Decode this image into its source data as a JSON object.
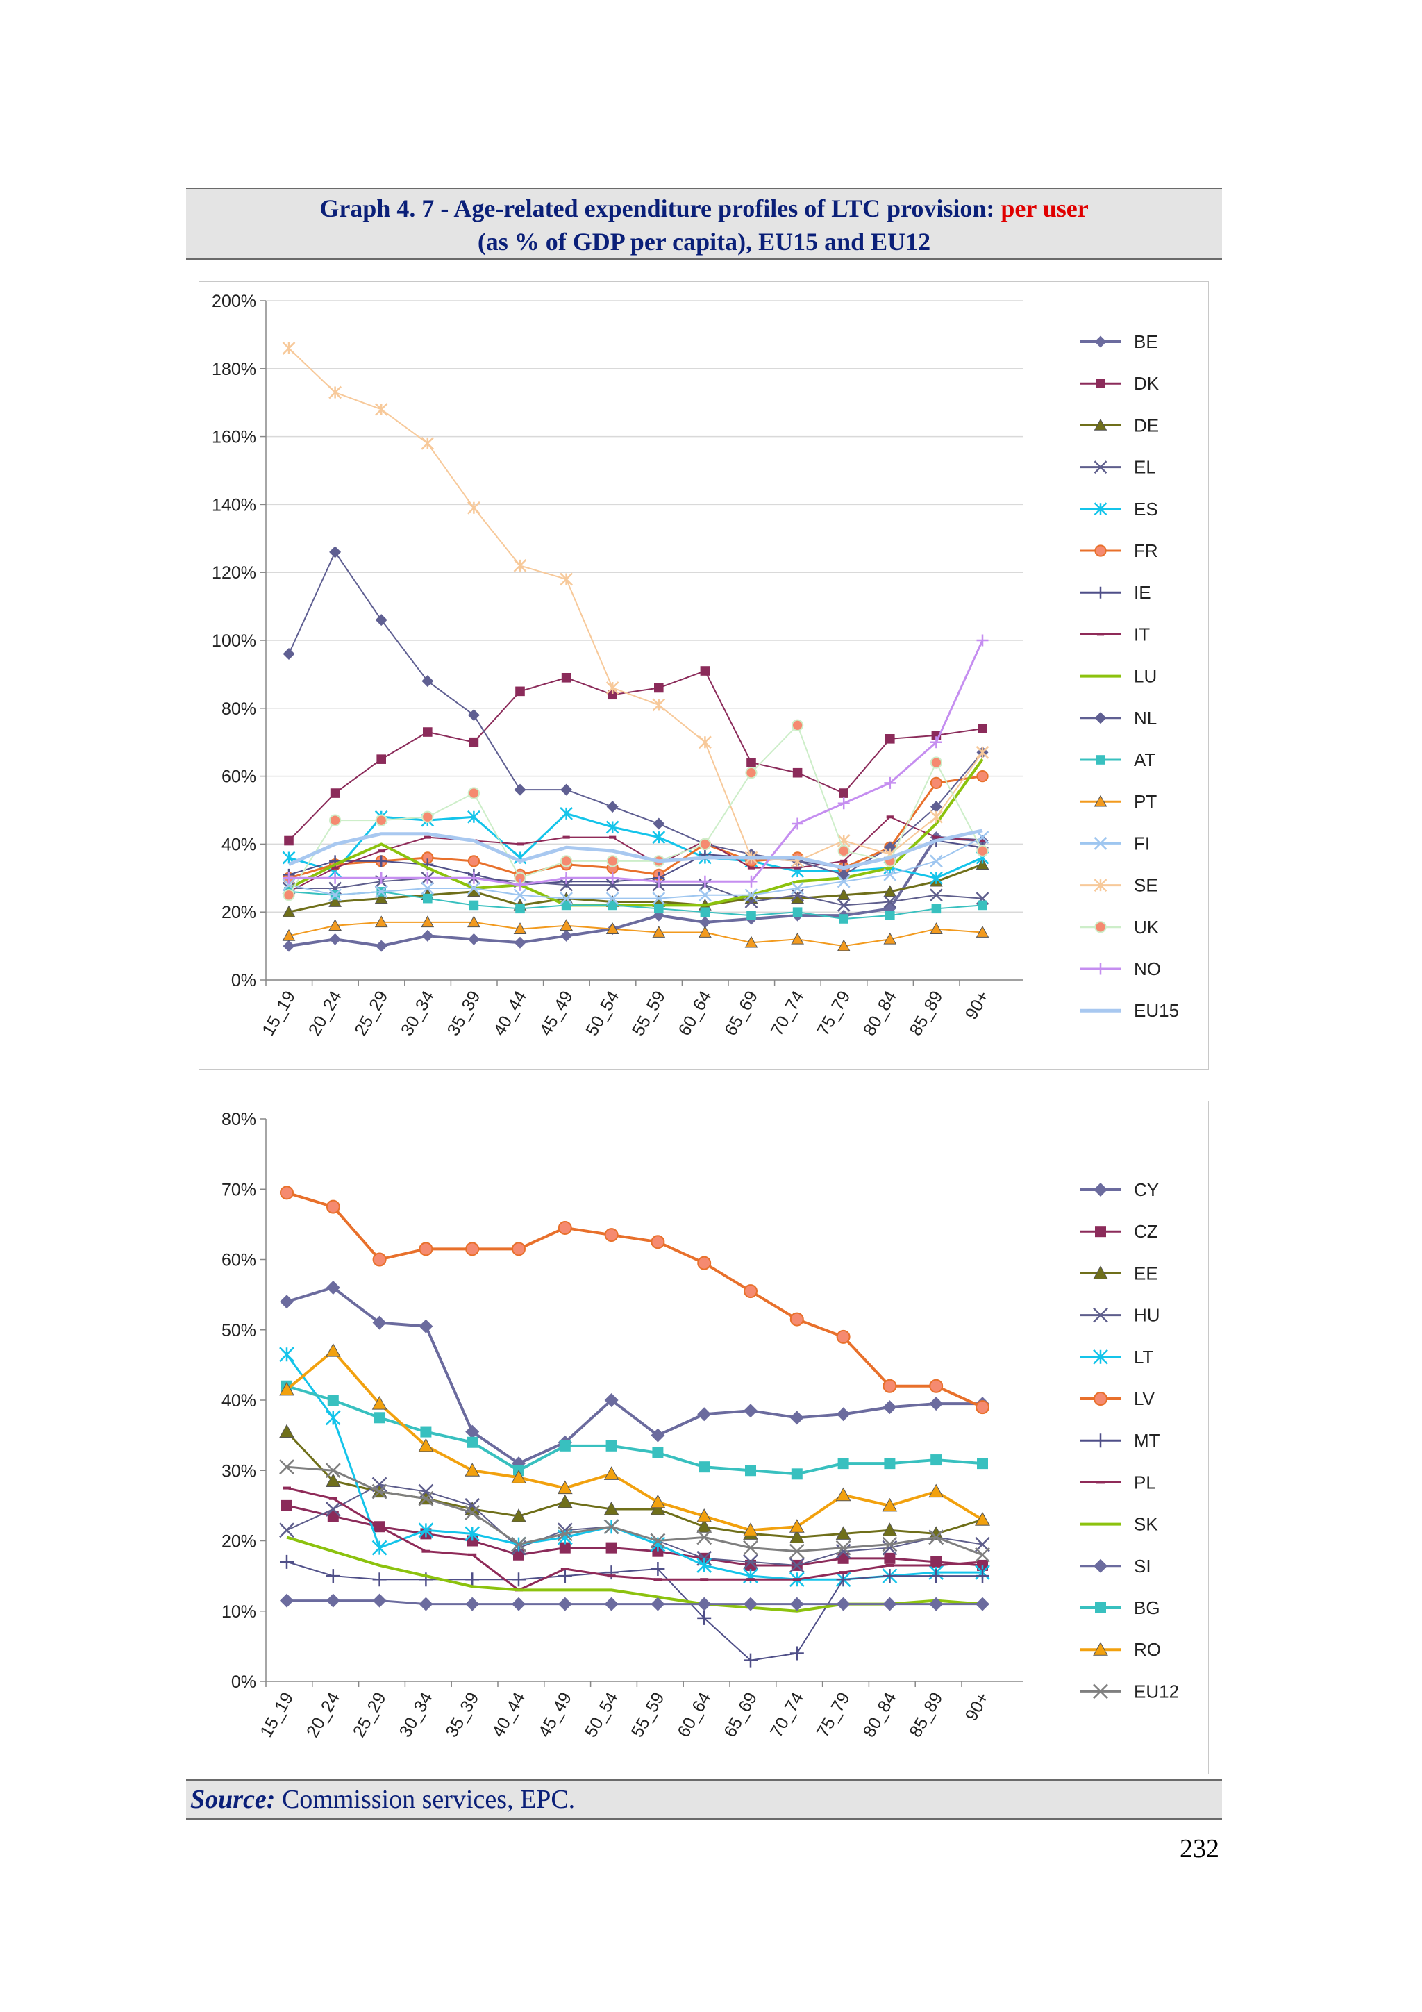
{
  "header": {
    "title_part1": "Graph 4. 7 - Age-related expenditure profiles of LTC provision: ",
    "title_highlight": "per user",
    "title_line2": "(as % of GDP per capita), EU15 and EU12"
  },
  "footer": {
    "source_label": "Source:",
    "source_text": " Commission services, EPC.",
    "page_number": "232"
  },
  "chart_data": [
    {
      "type": "line",
      "title": "",
      "xlabel": "",
      "ylabel": "",
      "ylim": [
        0,
        200
      ],
      "ytick_step": 20,
      "y_format": "percent",
      "grid": true,
      "legend": "right",
      "categories": [
        "15_19",
        "20_24",
        "25_29",
        "30_34",
        "35_39",
        "40_44",
        "45_49",
        "50_54",
        "55_59",
        "60_64",
        "65_69",
        "70_74",
        "75_79",
        "80_84",
        "85_89",
        "90+"
      ],
      "series": [
        {
          "name": "BE",
          "color": "#6b6b9e",
          "marker": "diamond",
          "width": 4,
          "values": [
            10,
            12,
            10,
            13,
            12,
            11,
            13,
            15,
            19,
            17,
            18,
            19,
            19,
            21,
            42,
            41
          ]
        },
        {
          "name": "DK",
          "color": "#8b2b5a",
          "marker": "square",
          "width": 2,
          "values": [
            41,
            55,
            65,
            73,
            70,
            85,
            89,
            84,
            86,
            91,
            64,
            61,
            55,
            71,
            72,
            74
          ]
        },
        {
          "name": "DE",
          "color": "#6f6f1a",
          "marker": "triangle",
          "width": 3,
          "values": [
            20,
            23,
            24,
            25,
            26,
            22,
            24,
            23,
            23,
            22,
            24,
            24,
            25,
            26,
            29,
            34
          ]
        },
        {
          "name": "EL",
          "color": "#5e5e8c",
          "marker": "x",
          "width": 2,
          "values": [
            27,
            27,
            29,
            30,
            30,
            29,
            28,
            28,
            28,
            28,
            23,
            25,
            22,
            23,
            25,
            24
          ]
        },
        {
          "name": "ES",
          "color": "#14c4ea",
          "marker": "star",
          "width": 3,
          "values": [
            36,
            32,
            48,
            47,
            48,
            36,
            49,
            45,
            42,
            36,
            35,
            32,
            32,
            33,
            30,
            36
          ]
        },
        {
          "name": "FR",
          "color": "#e8702b",
          "marker": "circle",
          "width": 3,
          "values": [
            30,
            34,
            35,
            36,
            35,
            31,
            34,
            33,
            31,
            40,
            35,
            36,
            33,
            39,
            58,
            60
          ]
        },
        {
          "name": "IE",
          "color": "#4f4f88",
          "marker": "plus",
          "width": 2,
          "values": [
            31,
            35,
            35,
            34,
            31,
            28,
            29,
            29,
            30,
            37,
            36,
            35,
            33,
            36,
            41,
            39
          ]
        },
        {
          "name": "IT",
          "color": "#8f2a58",
          "marker": "dash",
          "width": 2,
          "values": [
            26,
            33,
            38,
            42,
            41,
            40,
            42,
            42,
            34,
            41,
            33,
            33,
            35,
            48,
            42,
            41
          ]
        },
        {
          "name": "LU",
          "color": "#8cc20e",
          "marker": "none",
          "width": 4,
          "values": [
            27,
            34,
            40,
            33,
            27,
            28,
            22,
            22,
            22,
            22,
            25,
            29,
            30,
            33,
            46,
            65
          ]
        },
        {
          "name": "NL",
          "color": "#5f5f92",
          "marker": "diamond",
          "width": 2,
          "values": [
            96,
            126,
            106,
            88,
            78,
            56,
            56,
            51,
            46,
            40,
            37,
            35,
            31,
            39,
            51,
            67
          ]
        },
        {
          "name": "AT",
          "color": "#38c0bf",
          "marker": "square",
          "width": 2,
          "values": [
            26,
            25,
            26,
            24,
            22,
            21,
            22,
            22,
            21,
            20,
            19,
            20,
            18,
            19,
            21,
            22
          ]
        },
        {
          "name": "PT",
          "color": "#f29a1e",
          "marker": "triangle",
          "width": 2,
          "values": [
            13,
            16,
            17,
            17,
            17,
            15,
            16,
            15,
            14,
            14,
            11,
            12,
            10,
            12,
            15,
            14
          ]
        },
        {
          "name": "FI",
          "color": "#9ec6f0",
          "marker": "x",
          "width": 2,
          "values": [
            28,
            25,
            26,
            27,
            27,
            25,
            24,
            24,
            24,
            25,
            25,
            27,
            29,
            31,
            35,
            42
          ]
        },
        {
          "name": "SE",
          "color": "#f7c99a",
          "marker": "star",
          "width": 2,
          "values": [
            186,
            173,
            168,
            158,
            139,
            122,
            118,
            86,
            81,
            70,
            36,
            35,
            41,
            37,
            48,
            67
          ]
        },
        {
          "name": "UK",
          "color": "#cdeec9",
          "marker": "circle",
          "width": 2,
          "values": [
            25,
            47,
            47,
            48,
            55,
            30,
            35,
            35,
            35,
            40,
            61,
            75,
            38,
            35,
            64,
            38
          ]
        },
        {
          "name": "NO",
          "color": "#c58ef0",
          "marker": "plus",
          "width": 3,
          "values": [
            30,
            30,
            30,
            30,
            30,
            28,
            30,
            30,
            29,
            29,
            29,
            46,
            52,
            58,
            70,
            100
          ]
        },
        {
          "name": "EU15",
          "color": "#a8c8f0",
          "marker": "none",
          "width": 5,
          "values": [
            34,
            40,
            43,
            43,
            41,
            35,
            39,
            38,
            35,
            36,
            36,
            36,
            33,
            36,
            41,
            44
          ]
        }
      ]
    },
    {
      "type": "line",
      "title": "",
      "xlabel": "",
      "ylabel": "",
      "ylim": [
        0,
        80
      ],
      "ytick_step": 10,
      "y_format": "percent",
      "grid": false,
      "legend": "right",
      "categories": [
        "15_19",
        "20_24",
        "25_29",
        "30_34",
        "35_39",
        "40_44",
        "45_49",
        "50_54",
        "55_59",
        "60_64",
        "65_69",
        "70_74",
        "75_79",
        "80_84",
        "85_89",
        "90+"
      ],
      "series": [
        {
          "name": "CY",
          "color": "#6b6b9e",
          "marker": "diamond",
          "width": 4,
          "values": [
            54,
            56,
            51,
            50.5,
            35.5,
            31,
            34,
            40,
            35,
            38,
            38.5,
            37.5,
            38,
            39,
            39.5,
            39.5
          ]
        },
        {
          "name": "CZ",
          "color": "#8b2b5a",
          "marker": "square",
          "width": 3,
          "values": [
            25,
            23.5,
            22,
            21,
            20,
            18,
            19,
            19,
            18.5,
            17.5,
            16.5,
            16.5,
            17.5,
            17.5,
            17,
            16.5
          ]
        },
        {
          "name": "EE",
          "color": "#6f6f1a",
          "marker": "triangle",
          "width": 3,
          "values": [
            35.5,
            28.5,
            27,
            26,
            24.5,
            23.5,
            25.5,
            24.5,
            24.5,
            22,
            21,
            20.5,
            21,
            21.5,
            21,
            23
          ]
        },
        {
          "name": "HU",
          "color": "#5e5e8c",
          "marker": "x",
          "width": 2,
          "values": [
            21.5,
            24.5,
            28,
            27,
            25,
            19,
            21.5,
            22,
            20,
            17.5,
            17,
            16.5,
            18.5,
            19,
            20.5,
            19.5
          ]
        },
        {
          "name": "LT",
          "color": "#14c4ea",
          "marker": "star",
          "width": 3,
          "values": [
            46.5,
            37.5,
            19,
            21.5,
            21,
            19.5,
            20.5,
            22,
            19.5,
            16.5,
            15,
            14.5,
            14.5,
            15,
            15.5,
            15.5
          ]
        },
        {
          "name": "LV",
          "color": "#e8702b",
          "marker": "circle",
          "width": 4,
          "values": [
            69.5,
            67.5,
            60,
            61.5,
            61.5,
            61.5,
            64.5,
            63.5,
            62.5,
            59.5,
            55.5,
            51.5,
            49,
            42,
            42,
            39
          ]
        },
        {
          "name": "MT",
          "color": "#4f4f88",
          "marker": "plus",
          "width": 2,
          "values": [
            17,
            15,
            14.5,
            14.5,
            14.5,
            14.5,
            15,
            15.5,
            16,
            9,
            3,
            4,
            14.5,
            15,
            15,
            15
          ]
        },
        {
          "name": "PL",
          "color": "#8f2a58",
          "marker": "dash",
          "width": 3,
          "values": [
            27.5,
            26,
            22,
            18.5,
            18,
            13,
            16,
            15,
            14.5,
            14.5,
            14.5,
            14.5,
            15.5,
            16.5,
            16.5,
            17
          ]
        },
        {
          "name": "SK",
          "color": "#8cc20e",
          "marker": "none",
          "width": 4,
          "values": [
            20.5,
            18.5,
            16.5,
            15,
            13.5,
            13,
            13,
            13,
            12,
            11,
            10.5,
            10,
            11,
            11,
            11.5,
            11
          ]
        },
        {
          "name": "SI",
          "color": "#6b6b9e",
          "marker": "diamond",
          "width": 3,
          "values": [
            11.5,
            11.5,
            11.5,
            11,
            11,
            11,
            11,
            11,
            11,
            11,
            11,
            11,
            11,
            11,
            11,
            11
          ]
        },
        {
          "name": "BG",
          "color": "#38c0bf",
          "marker": "square",
          "width": 4,
          "values": [
            42,
            40,
            37.5,
            35.5,
            34,
            30,
            33.5,
            33.5,
            32.5,
            30.5,
            30,
            29.5,
            31,
            31,
            31.5,
            31
          ]
        },
        {
          "name": "RO",
          "color": "#f2a10e",
          "marker": "triangle",
          "width": 4,
          "values": [
            41.5,
            47,
            39.5,
            33.5,
            30,
            29,
            27.5,
            29.5,
            25.5,
            23.5,
            21.5,
            22,
            26.5,
            25,
            27,
            23
          ]
        },
        {
          "name": "EU12",
          "color": "#7f7f7f",
          "marker": "x",
          "width": 3,
          "values": [
            30.5,
            30,
            27,
            26,
            24,
            19.5,
            21,
            22,
            20,
            20.5,
            19,
            18.5,
            19,
            19.5,
            20.5,
            18
          ]
        }
      ]
    }
  ]
}
